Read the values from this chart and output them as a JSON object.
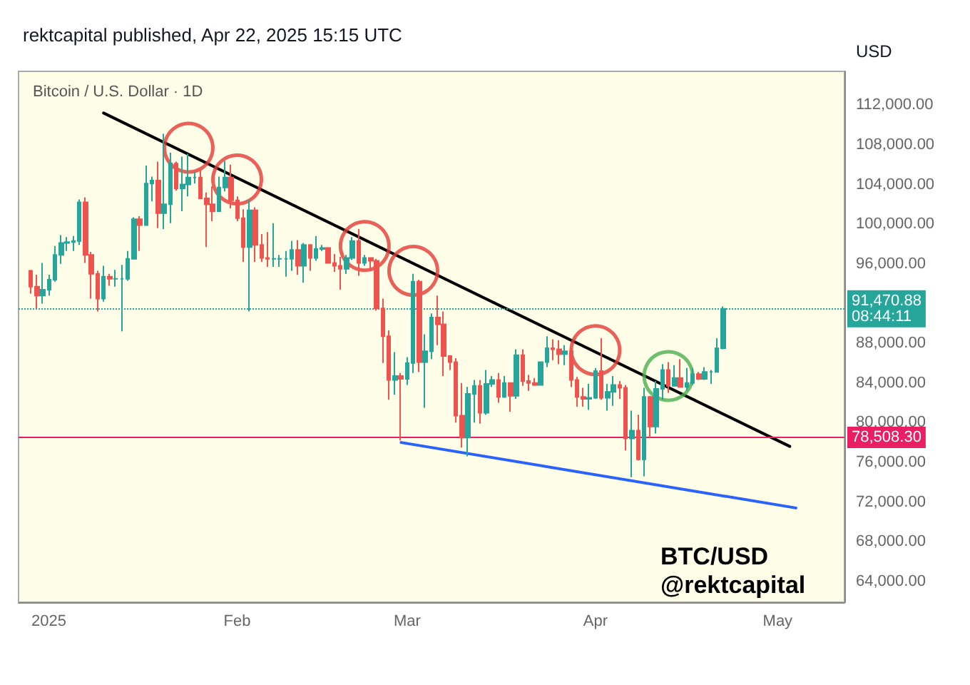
{
  "chart_data": {
    "type": "candlestick",
    "title": "Bitcoin / U.S. Dollar · 1D",
    "ylabel": "USD",
    "annotations": [
      "rektcapital published, Apr 22, 2025 15:15 UTC",
      "BTC/USD\n@rektcapital"
    ],
    "x": [
      "2024-12-29",
      "2024-12-30",
      "2024-12-31",
      "2025-01-01",
      "2025-01-02",
      "2025-01-03",
      "2025-01-04",
      "2025-01-05",
      "2025-01-06",
      "2025-01-07",
      "2025-01-08",
      "2025-01-09",
      "2025-01-10",
      "2025-01-11",
      "2025-01-12",
      "2025-01-13",
      "2025-01-14",
      "2025-01-15",
      "2025-01-16",
      "2025-01-17",
      "2025-01-18",
      "2025-01-19",
      "2025-01-20",
      "2025-01-21",
      "2025-01-22",
      "2025-01-23",
      "2025-01-24",
      "2025-01-25",
      "2025-01-26",
      "2025-01-27",
      "2025-01-28",
      "2025-01-29",
      "2025-01-30",
      "2025-01-31",
      "2025-02-01",
      "2025-02-02",
      "2025-02-03",
      "2025-02-04",
      "2025-02-05",
      "2025-02-06",
      "2025-02-07",
      "2025-02-08",
      "2025-02-09",
      "2025-02-10",
      "2025-02-11",
      "2025-02-12",
      "2025-02-13",
      "2025-02-14",
      "2025-02-15",
      "2025-02-16",
      "2025-02-17",
      "2025-02-18",
      "2025-02-19",
      "2025-02-20",
      "2025-02-21",
      "2025-02-22",
      "2025-02-23",
      "2025-02-24",
      "2025-02-25",
      "2025-02-26",
      "2025-02-27",
      "2025-02-28",
      "2025-03-01",
      "2025-03-02",
      "2025-03-03",
      "2025-03-04",
      "2025-03-05",
      "2025-03-06",
      "2025-03-07",
      "2025-03-08",
      "2025-03-09",
      "2025-03-10",
      "2025-03-11",
      "2025-03-12",
      "2025-03-13",
      "2025-03-14",
      "2025-03-15",
      "2025-03-16",
      "2025-03-17",
      "2025-03-18",
      "2025-03-19",
      "2025-03-20",
      "2025-03-21",
      "2025-03-22",
      "2025-03-23",
      "2025-03-24",
      "2025-03-25",
      "2025-03-26",
      "2025-03-27",
      "2025-03-28",
      "2025-03-29",
      "2025-03-30",
      "2025-03-31",
      "2025-04-01",
      "2025-04-02",
      "2025-04-03",
      "2025-04-04",
      "2025-04-05",
      "2025-04-06",
      "2025-04-07",
      "2025-04-08",
      "2025-04-09",
      "2025-04-10",
      "2025-04-11",
      "2025-04-12",
      "2025-04-13",
      "2025-04-14",
      "2025-04-15",
      "2025-04-16",
      "2025-04-17",
      "2025-04-18",
      "2025-04-19",
      "2025-04-20",
      "2025-04-21",
      "2025-04-22"
    ],
    "ohlc": [
      [
        95300,
        95400,
        93000,
        93700
      ],
      [
        93700,
        94900,
        91500,
        92800
      ],
      [
        92800,
        96100,
        92000,
        93400
      ],
      [
        93400,
        94900,
        92800,
        94400
      ],
      [
        94400,
        97800,
        94200,
        96900
      ],
      [
        96900,
        98900,
        96000,
        98100
      ],
      [
        98100,
        98700,
        97300,
        98200
      ],
      [
        98200,
        98800,
        97300,
        98300
      ],
      [
        98300,
        102500,
        97900,
        102200
      ],
      [
        102200,
        102700,
        96100,
        96900
      ],
      [
        96900,
        97200,
        92500,
        95000
      ],
      [
        95000,
        95300,
        91200,
        92500
      ],
      [
        92500,
        95800,
        92200,
        94700
      ],
      [
        94700,
        95000,
        93800,
        94500
      ],
      [
        94500,
        95400,
        93700,
        94500
      ],
      [
        94500,
        95900,
        89200,
        94500
      ],
      [
        94500,
        97300,
        94300,
        96500
      ],
      [
        96500,
        100700,
        96500,
        100500
      ],
      [
        100500,
        100800,
        97300,
        99900
      ],
      [
        99900,
        105900,
        99900,
        104100
      ],
      [
        104100,
        104800,
        102300,
        104400
      ],
      [
        104400,
        106300,
        99600,
        101100
      ],
      [
        101100,
        109100,
        99500,
        102000
      ],
      [
        102000,
        107200,
        100100,
        106100
      ],
      [
        106100,
        106300,
        103400,
        103600
      ],
      [
        103600,
        106800,
        101300,
        104000
      ],
      [
        104000,
        107100,
        102800,
        104700
      ],
      [
        104700,
        105300,
        104100,
        104700
      ],
      [
        104700,
        105500,
        102600,
        102600
      ],
      [
        102600,
        103200,
        97700,
        102000
      ],
      [
        102000,
        103800,
        100300,
        101300
      ],
      [
        101300,
        104800,
        101300,
        103700
      ],
      [
        103700,
        106400,
        103300,
        104700
      ],
      [
        104700,
        106000,
        101600,
        102400
      ],
      [
        102400,
        102800,
        100300,
        100600
      ],
      [
        100600,
        101500,
        96200,
        97700
      ],
      [
        97700,
        102500,
        91200,
        101400
      ],
      [
        101400,
        101700,
        96200,
        97900
      ],
      [
        97900,
        99000,
        96200,
        96600
      ],
      [
        96600,
        99200,
        95700,
        96500
      ],
      [
        96500,
        100100,
        95700,
        96500
      ],
      [
        96500,
        96900,
        95700,
        96500
      ],
      [
        96500,
        97300,
        94700,
        96500
      ],
      [
        96500,
        98300,
        95300,
        97400
      ],
      [
        97400,
        98400,
        94900,
        95800
      ],
      [
        95800,
        98100,
        94100,
        97900
      ],
      [
        97900,
        97900,
        95300,
        96600
      ],
      [
        96600,
        98800,
        96300,
        97500
      ],
      [
        97500,
        97900,
        97300,
        97600
      ],
      [
        97600,
        97700,
        96100,
        96100
      ],
      [
        96100,
        97000,
        95200,
        95800
      ],
      [
        95800,
        96700,
        93400,
        95500
      ],
      [
        95500,
        96900,
        95000,
        96600
      ],
      [
        96600,
        98700,
        96400,
        98300
      ],
      [
        98300,
        99500,
        94800,
        96100
      ],
      [
        96100,
        96900,
        95800,
        96600
      ],
      [
        96600,
        96600,
        95300,
        96300
      ],
      [
        96300,
        96500,
        91300,
        91500
      ],
      [
        91500,
        92500,
        86000,
        88700
      ],
      [
        88700,
        89300,
        82300,
        84300
      ],
      [
        84300,
        87100,
        82800,
        84700
      ],
      [
        84700,
        85000,
        78200,
        84400
      ],
      [
        84400,
        86600,
        83800,
        86000
      ],
      [
        86000,
        95000,
        85000,
        94200
      ],
      [
        94200,
        94400,
        85100,
        86100
      ],
      [
        86100,
        88900,
        81500,
        87200
      ],
      [
        87200,
        91000,
        86400,
        90600
      ],
      [
        90600,
        92800,
        87800,
        89900
      ],
      [
        89900,
        91200,
        84700,
        86700
      ],
      [
        86700,
        86800,
        85300,
        86100
      ],
      [
        86100,
        86500,
        80000,
        80700
      ],
      [
        80700,
        84000,
        77500,
        78500
      ],
      [
        78500,
        83600,
        76600,
        82900
      ],
      [
        82900,
        84300,
        80000,
        83700
      ],
      [
        83700,
        84300,
        79900,
        81000
      ],
      [
        81000,
        85300,
        80800,
        83900
      ],
      [
        83900,
        84700,
        83600,
        84300
      ],
      [
        84300,
        85000,
        82000,
        82600
      ],
      [
        82600,
        84700,
        82500,
        84000
      ],
      [
        84000,
        84000,
        81100,
        82700
      ],
      [
        82700,
        87400,
        82400,
        86800
      ],
      [
        86800,
        87400,
        83700,
        84200
      ],
      [
        84200,
        84800,
        83200,
        84000
      ],
      [
        84000,
        84500,
        83700,
        83800
      ],
      [
        83800,
        86100,
        83800,
        86100
      ],
      [
        86100,
        88700,
        85600,
        87500
      ],
      [
        87500,
        88400,
        86300,
        87400
      ],
      [
        87400,
        88300,
        85900,
        86900
      ],
      [
        86900,
        87800,
        85800,
        87200
      ],
      [
        87200,
        87500,
        83600,
        84300
      ],
      [
        84300,
        84600,
        81600,
        82600
      ],
      [
        82600,
        83500,
        81600,
        82400
      ],
      [
        82400,
        83900,
        81300,
        82500
      ],
      [
        82500,
        85500,
        82400,
        85200
      ],
      [
        85200,
        88500,
        82300,
        82500
      ],
      [
        82500,
        83900,
        81200,
        83100
      ],
      [
        83100,
        84700,
        81700,
        83800
      ],
      [
        83800,
        84200,
        82400,
        83500
      ],
      [
        83500,
        83800,
        77200,
        78400
      ],
      [
        78400,
        81200,
        74500,
        79200
      ],
      [
        79200,
        80800,
        76200,
        76300
      ],
      [
        76300,
        83500,
        74600,
        82600
      ],
      [
        82600,
        82700,
        78500,
        79600
      ],
      [
        79600,
        84200,
        78900,
        83400
      ],
      [
        83400,
        85900,
        82300,
        85300
      ],
      [
        85300,
        86100,
        83000,
        83700
      ],
      [
        83700,
        85800,
        83700,
        84500
      ],
      [
        84500,
        86400,
        83600,
        83600
      ],
      [
        83600,
        85500,
        83200,
        84000
      ],
      [
        84000,
        85500,
        83800,
        84900
      ],
      [
        84900,
        85100,
        84300,
        84400
      ],
      [
        84400,
        85600,
        84300,
        85100
      ],
      [
        85100,
        85300,
        83900,
        85100
      ],
      [
        85100,
        88500,
        85100,
        87500
      ],
      [
        87500,
        91700,
        87400,
        91470.88
      ]
    ],
    "series": [
      {
        "type": "line",
        "color": "#000000",
        "line_style": "solid",
        "x": [
          "2025-01-10",
          "2025-05-03"
        ],
        "values": [
          111200,
          77600
        ]
      },
      {
        "type": "line",
        "color": "#2962ff",
        "line_style": "solid",
        "x": [
          "2025-02-28",
          "2025-05-04"
        ],
        "values": [
          78000,
          71400
        ]
      },
      {
        "type": "scatter",
        "color": "#e53935",
        "marker": "circle",
        "x": [
          "2025-01-24",
          "2025-02-01",
          "2025-02-22",
          "2025-03-02",
          "2025-04-01"
        ],
        "values": [
          107700,
          104500,
          97800,
          95300,
          87300
        ]
      },
      {
        "type": "scatter",
        "color": "#4caf50",
        "marker": "circle",
        "x": [
          "2025-04-13"
        ],
        "values": [
          84700
        ]
      }
    ],
    "ref_lines": [
      {
        "axis": "y",
        "value": 91470.88,
        "label": "91,470.88\n08:44:11",
        "color": "#26a69a",
        "line_style": "dotted"
      },
      {
        "axis": "y",
        "value": 78508.3,
        "label": "78,508.30",
        "color": "#e91e63",
        "line_style": "solid"
      }
    ],
    "xlim": [
      "2024-12-27",
      "2025-05-12"
    ],
    "xticks": [
      {
        "value": "2025-01-01",
        "label": "2025"
      },
      {
        "value": "2025-02-01",
        "label": "Feb"
      },
      {
        "value": "2025-03-01",
        "label": "Mar"
      },
      {
        "value": "2025-04-01",
        "label": "Apr"
      },
      {
        "value": "2025-05-01",
        "label": "May"
      }
    ],
    "ylim": [
      61900,
      115400
    ],
    "yticks": [
      {
        "value": 64000,
        "label": "64,000.00"
      },
      {
        "value": 68000,
        "label": "68,000.00"
      },
      {
        "value": 72000,
        "label": "72,000.00"
      },
      {
        "value": 76000,
        "label": "76,000.00"
      },
      {
        "value": 80000,
        "label": "80,000.00"
      },
      {
        "value": 84000,
        "label": "84,000.00"
      },
      {
        "value": 88000,
        "label": "88,000.00"
      },
      {
        "value": 96000,
        "label": "96,000.00"
      },
      {
        "value": 100000,
        "label": "100,000.00"
      },
      {
        "value": 104000,
        "label": "104,000.00"
      },
      {
        "value": 108000,
        "label": "108,000.00"
      },
      {
        "value": 112000,
        "label": "112,000.00"
      }
    ],
    "grid": false,
    "legend": false
  }
}
